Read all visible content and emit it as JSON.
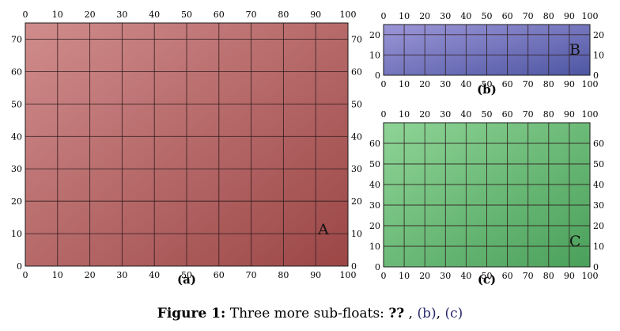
{
  "figure": {
    "caption": {
      "label": "Figure 1:",
      "text": "Three more sub-floats:",
      "missing_ref": "??",
      "ref_b": "(b)",
      "ref_c": "(c)"
    },
    "panels": [
      {
        "id": "a",
        "letter": "A",
        "subcaption": "(a)",
        "fill_light": "#d08c8c",
        "fill_dark": "#9c4646",
        "x_ticks": [
          0,
          10,
          20,
          30,
          40,
          50,
          60,
          70,
          80,
          90,
          100
        ],
        "y_ticks": [
          0,
          10,
          20,
          30,
          40,
          50,
          60,
          70
        ],
        "x_range": [
          0,
          100
        ],
        "y_range": [
          0,
          75
        ]
      },
      {
        "id": "b",
        "letter": "B",
        "subcaption": "(b)",
        "fill_light": "#9c96d8",
        "fill_dark": "#4e56a2",
        "x_ticks": [
          0,
          10,
          20,
          30,
          40,
          50,
          60,
          70,
          80,
          90,
          100
        ],
        "y_ticks": [
          0,
          10,
          20
        ],
        "x_range": [
          0,
          100
        ],
        "y_range": [
          0,
          25
        ]
      },
      {
        "id": "c",
        "letter": "C",
        "subcaption": "(c)",
        "fill_light": "#8ed496",
        "fill_dark": "#4aa05a",
        "x_ticks": [
          0,
          10,
          20,
          30,
          40,
          50,
          60,
          70,
          80,
          90,
          100
        ],
        "y_ticks": [
          0,
          10,
          20,
          30,
          40,
          50,
          60
        ],
        "x_range": [
          0,
          100
        ],
        "y_range": [
          0,
          70
        ]
      }
    ]
  }
}
